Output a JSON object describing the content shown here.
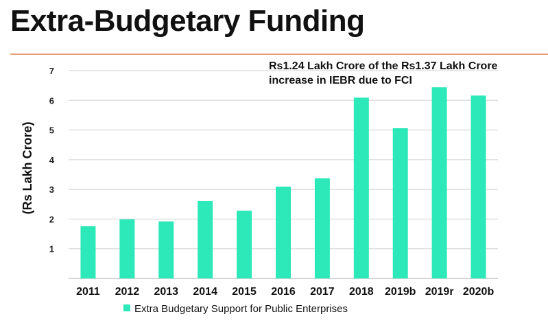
{
  "page": {
    "title": "Extra-Budgetary Funding"
  },
  "chart_data": {
    "type": "bar",
    "title": "Extra-Budgetary Funding",
    "ylabel": "(Rs Lakh Crore)",
    "xlabel": "",
    "ylim": [
      0,
      7
    ],
    "yticks": [
      1,
      2,
      3,
      4,
      5,
      6,
      7
    ],
    "grid": true,
    "categories": [
      "2011",
      "2012",
      "2013",
      "2014",
      "2015",
      "2016",
      "2017",
      "2018",
      "2019b",
      "2019r",
      "2020b"
    ],
    "series": [
      {
        "name": "Extra Budgetary Support for Public Enterprises",
        "color": "#2de8b8",
        "values": [
          1.76,
          1.99,
          1.92,
          2.61,
          2.28,
          3.09,
          3.37,
          6.09,
          5.06,
          6.44,
          6.16
        ]
      }
    ],
    "annotation": {
      "lines": [
        "Rs1.24 Lakh Crore of the Rs1.37 Lakh Crore",
        "increase in IEBR due to FCI"
      ]
    },
    "legend_position": "bottom"
  }
}
